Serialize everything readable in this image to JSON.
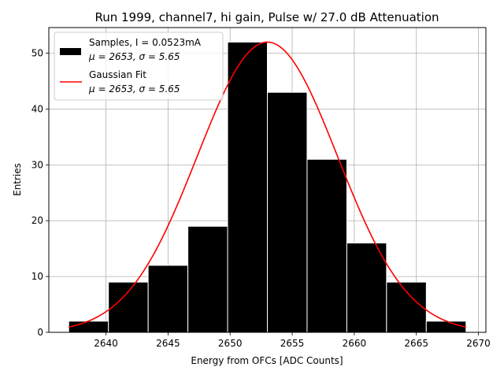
{
  "chart_data": {
    "type": "bar",
    "title": "Run 1999, channel7, hi gain, Pulse w/ 27.0 dB Attenuation",
    "xlabel": "Energy from OFCs [ADC Counts]",
    "ylabel": "Entries",
    "xlim": [
      2635.4,
      2670.6
    ],
    "ylim": [
      0,
      54.6
    ],
    "xticks": [
      2640,
      2645,
      2650,
      2655,
      2660,
      2665,
      2670
    ],
    "yticks": [
      0,
      10,
      20,
      30,
      40,
      50
    ],
    "grid": true,
    "legend_position": "top-left",
    "bins": [
      {
        "left": 2637.0,
        "right": 2640.2,
        "count": 2
      },
      {
        "left": 2640.2,
        "right": 2643.4,
        "count": 9
      },
      {
        "left": 2643.4,
        "right": 2646.6,
        "count": 12
      },
      {
        "left": 2646.6,
        "right": 2649.8,
        "count": 19
      },
      {
        "left": 2649.8,
        "right": 2653.0,
        "count": 52
      },
      {
        "left": 2653.0,
        "right": 2656.2,
        "count": 43
      },
      {
        "left": 2656.2,
        "right": 2659.4,
        "count": 31
      },
      {
        "left": 2659.4,
        "right": 2662.6,
        "count": 16
      },
      {
        "left": 2662.6,
        "right": 2665.8,
        "count": 9
      },
      {
        "left": 2665.8,
        "right": 2669.0,
        "count": 2
      }
    ],
    "fit": {
      "name": "Gaussian Fit",
      "mu": 2653,
      "sigma": 5.65,
      "amplitude": 52,
      "x_range": [
        2637,
        2669
      ]
    },
    "legend": [
      {
        "type": "patch",
        "color": "#000000",
        "line1": "Samples, I = 0.0523mA",
        "line2_prefix": "μ = 2653, ",
        "line2_suffix": "σ = 5.65"
      },
      {
        "type": "line",
        "color": "#ff0000",
        "line1": "Gaussian Fit",
        "line2_prefix": "μ = 2653, ",
        "line2_suffix": "σ = 5.65"
      }
    ],
    "colors": {
      "bars": "#000000",
      "bar_edge": "#ffffff",
      "fit_line": "#ff0000",
      "grid": "#b0b0b0"
    }
  }
}
